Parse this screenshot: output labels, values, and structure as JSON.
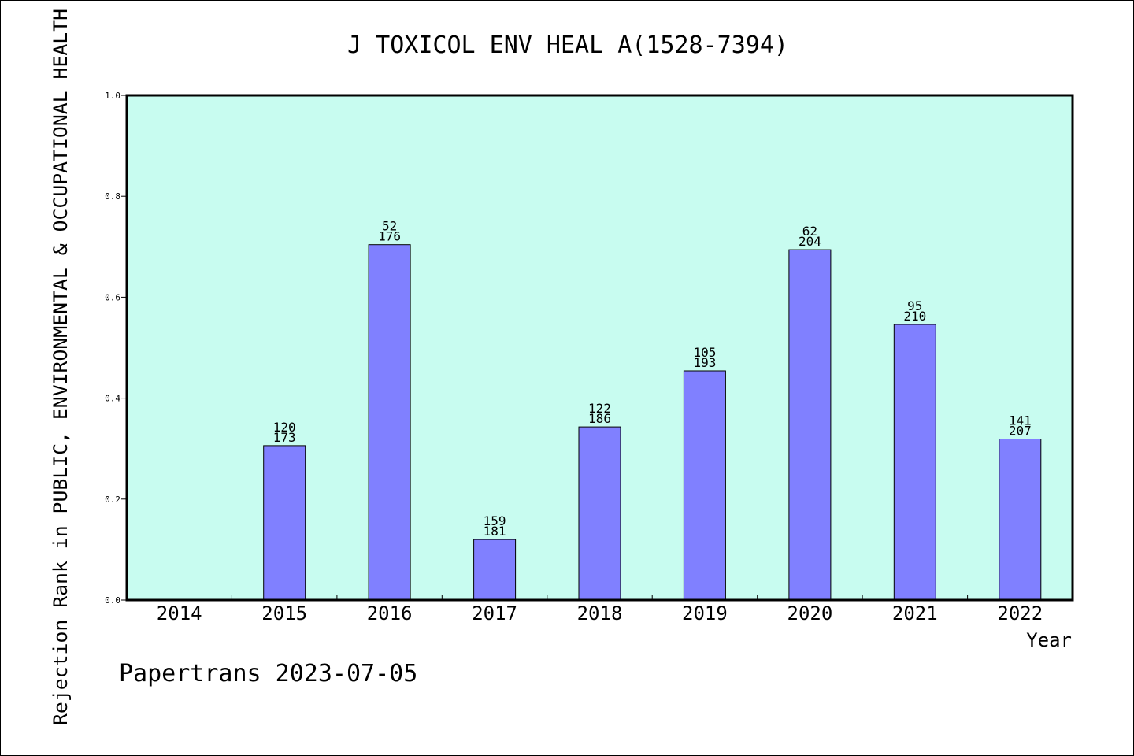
{
  "chart_data": {
    "type": "bar",
    "title": "J TOXICOL ENV HEAL A(1528-7394)",
    "ylabel": "Rejection Rank in PUBLIC, ENVIRONMENTAL & OCCUPATIONAL HEALTH",
    "xlabel": "Year",
    "footer": "Papertrans 2023-07-05",
    "categories": [
      "2014",
      "2015",
      "2016",
      "2017",
      "2018",
      "2019",
      "2020",
      "2021",
      "2022"
    ],
    "values": [
      null,
      0.306,
      0.704,
      0.12,
      0.343,
      0.454,
      0.694,
      0.546,
      0.319
    ],
    "rank_labels": [
      "",
      "120",
      "52",
      "159",
      "122",
      "105",
      "62",
      "95",
      "141"
    ],
    "total_labels": [
      "",
      "173",
      "176",
      "181",
      "186",
      "193",
      "204",
      "210",
      "207"
    ],
    "ylim": [
      0,
      1.0
    ],
    "yticks": [
      "0.0",
      "0.2",
      "0.4",
      "0.6",
      "0.8",
      "1.0"
    ],
    "grid": false,
    "colors": {
      "plot_background": "#c8fcf0",
      "bar_fill": "#8080ff",
      "bar_stroke": "#000000",
      "axis": "#000000"
    }
  }
}
